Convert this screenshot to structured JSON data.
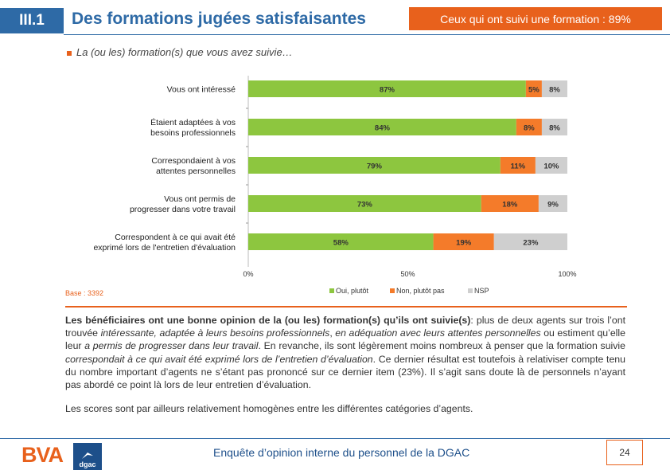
{
  "header": {
    "section": "III.1",
    "title": "Des formations jugées satisfaisantes",
    "callout": "Ceux qui ont suivi une formation : 89%",
    "subtitle": "La (ou les) formation(s) que vous avez suivie…"
  },
  "colors": {
    "oui": "#8dc63f",
    "non": "#f47b2a",
    "nsp": "#cfcfcf",
    "accent": "#e8611c",
    "brand": "#2e6aa6"
  },
  "chart_data": {
    "type": "bar",
    "orientation": "horizontal",
    "stacked": true,
    "categories": [
      [
        "Vous ont intéressé"
      ],
      [
        "Étaient adaptées à vos",
        "besoins professionnels"
      ],
      [
        "Correspondaient à vos",
        "attentes personnelles"
      ],
      [
        "Vous ont permis de",
        "progresser dans votre travail"
      ],
      [
        "Correspondent à ce qui avait été",
        "exprimé lors de l'entretien d'évaluation"
      ]
    ],
    "series": [
      {
        "name": "Oui, plutôt",
        "values": [
          87,
          84,
          79,
          73,
          58
        ],
        "labels": [
          "87%",
          "84%",
          "79%",
          "73%",
          "58%"
        ]
      },
      {
        "name": "Non, plutôt pas",
        "values": [
          5,
          8,
          11,
          18,
          19
        ],
        "labels": [
          "5%",
          "8%",
          "11%",
          "18%",
          "19%"
        ]
      },
      {
        "name": "NSP",
        "values": [
          8,
          8,
          10,
          9,
          23
        ],
        "labels": [
          "8%",
          "8%",
          "10%",
          "9%",
          "23%"
        ]
      }
    ],
    "xlim": [
      0,
      100
    ],
    "ticks": [
      "0%",
      "50%",
      "100%"
    ],
    "legend": "bottom"
  },
  "base": "Base : 3392",
  "body": {
    "p1_bold": "Les bénéficiaires ont une bonne opinion de la (ou les) formation(s) qu’ils ont suivie(s)",
    "p1_a": ": plus de deux agents sur trois l’ont trouvée ",
    "p1_i1": "intéressante,  adaptée à leurs besoins professionnels",
    "p1_b": ", ",
    "p1_i2": "en adéquation avec leurs attentes personnelles",
    "p1_c": " ou estiment qu’elle leur ",
    "p1_i3": "a permis de progresser dans leur travail",
    "p1_d": ". En revanche, ils sont légèrement moins nombreux à penser que la formation suivie ",
    "p1_i4": "correspondait à ce qui avait été exprimé lors de l’entretien d’évaluation",
    "p1_e": ". Ce dernier résultat est toutefois à relativiser compte tenu du nombre important d’agents ne s’étant pas prononcé sur ce dernier item (23%). Il s’agit sans doute là de personnels n’ayant pas abordé ce point là lors de leur entretien d’évaluation.",
    "p2": "Les scores sont par ailleurs relativement homogènes entre les différentes catégories d’agents."
  },
  "footer": {
    "logo_left": "BVA",
    "logo_right": "dgac",
    "text": "Enquête d’opinion interne du personnel de la DGAC",
    "page": "24"
  }
}
